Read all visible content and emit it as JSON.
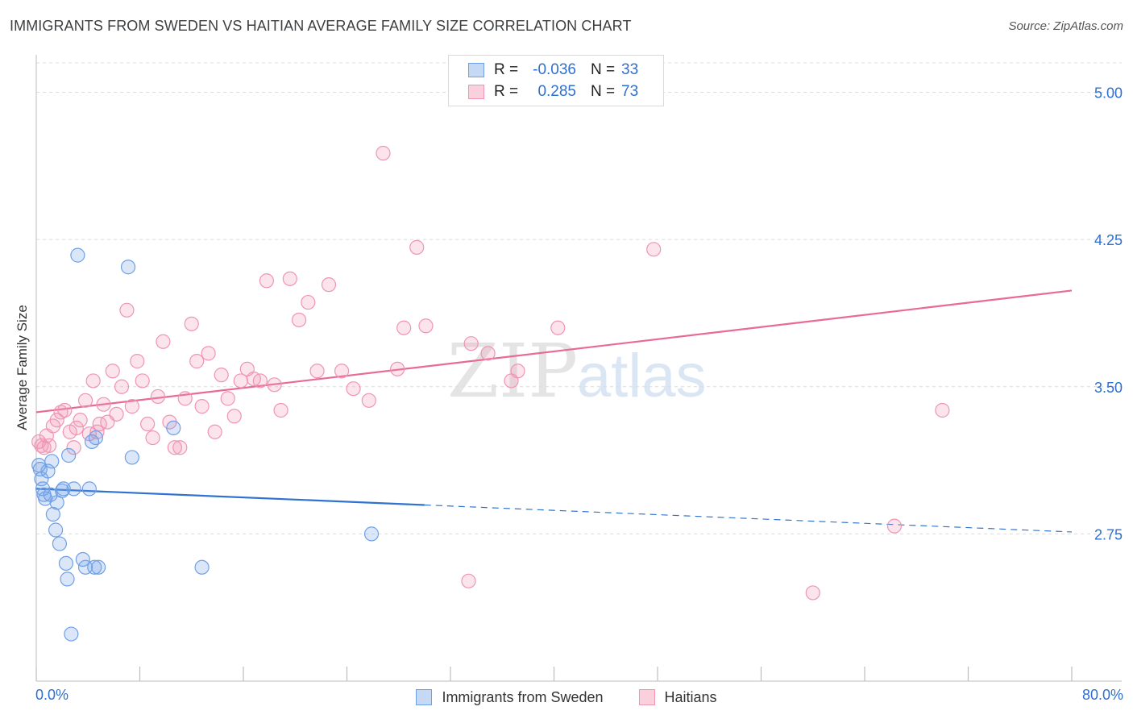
{
  "title": "IMMIGRANTS FROM SWEDEN VS HAITIAN AVERAGE FAMILY SIZE CORRELATION CHART",
  "source": "Source: ZipAtlas.com",
  "watermark": {
    "zip": "ZIP",
    "atlas": "atlas"
  },
  "legend": {
    "r_label": "R =",
    "n_label": "N =",
    "rows": [
      {
        "r": "-0.036",
        "n": "33"
      },
      {
        "r": "0.285",
        "n": "73"
      }
    ]
  },
  "x_tick_labels": {
    "min": "0.0%",
    "max": "80.0%"
  },
  "chart_data": {
    "type": "scatter",
    "title": "IMMIGRANTS FROM SWEDEN VS HAITIAN AVERAGE FAMILY SIZE CORRELATION CHART",
    "xlabel": "",
    "ylabel": "Average Family Size",
    "xlim": [
      0,
      80
    ],
    "ylim": [
      2.0,
      5.15
    ],
    "y_ticks": [
      2.75,
      3.5,
      4.25,
      5.0
    ],
    "y_tick_labels": [
      "2.75",
      "3.50",
      "4.25",
      "5.00"
    ],
    "grid": "horizontal dashed",
    "legend_position": "top-center",
    "colors": {
      "sweden": "#6fa0e6",
      "haitians": "#ef95b3",
      "sweden_line": "#2f73d0",
      "haitians_line": "#e86b94"
    },
    "series": [
      {
        "name": "Immigrants from Sweden",
        "x": [
          0.2,
          0.3,
          0.4,
          0.5,
          0.6,
          0.7,
          0.9,
          1.1,
          1.2,
          1.3,
          1.5,
          1.6,
          1.8,
          2.0,
          2.1,
          2.3,
          2.4,
          2.5,
          2.7,
          2.9,
          3.2,
          3.6,
          3.8,
          4.1,
          4.3,
          4.5,
          4.6,
          4.8,
          7.1,
          7.4,
          10.6,
          12.8,
          25.9
        ],
        "y": [
          3.1,
          3.08,
          3.03,
          2.98,
          2.95,
          2.93,
          3.07,
          2.95,
          3.12,
          2.85,
          2.77,
          2.91,
          2.7,
          2.97,
          2.98,
          2.6,
          2.52,
          3.15,
          2.24,
          2.98,
          4.17,
          2.62,
          2.58,
          2.98,
          3.22,
          2.58,
          3.24,
          2.58,
          4.11,
          3.14,
          3.29,
          2.58,
          2.75
        ]
      },
      {
        "name": "Haitians",
        "x": [
          0.2,
          0.4,
          0.6,
          0.8,
          1.0,
          1.3,
          1.6,
          1.9,
          2.2,
          2.6,
          2.9,
          3.1,
          3.4,
          3.8,
          4.1,
          4.4,
          4.7,
          4.9,
          5.2,
          5.5,
          5.9,
          6.2,
          6.6,
          7.0,
          7.4,
          7.8,
          8.2,
          8.6,
          9.0,
          9.4,
          9.8,
          10.3,
          10.7,
          11.1,
          11.5,
          12.0,
          12.4,
          12.8,
          13.3,
          13.8,
          14.3,
          14.8,
          15.3,
          15.8,
          16.3,
          16.8,
          17.3,
          17.8,
          18.4,
          18.9,
          19.6,
          20.3,
          21.0,
          21.7,
          22.6,
          23.6,
          24.5,
          25.7,
          26.8,
          27.9,
          28.4,
          29.4,
          30.1,
          33.4,
          33.6,
          34.9,
          36.7,
          37.2,
          40.3,
          47.7,
          60.0,
          66.3,
          70.0
        ],
        "y": [
          3.22,
          3.2,
          3.19,
          3.25,
          3.2,
          3.3,
          3.33,
          3.37,
          3.38,
          3.27,
          3.19,
          3.29,
          3.33,
          3.43,
          3.26,
          3.53,
          3.27,
          3.31,
          3.41,
          3.32,
          3.58,
          3.36,
          3.5,
          3.89,
          3.4,
          3.63,
          3.53,
          3.31,
          3.24,
          3.45,
          3.73,
          3.32,
          3.19,
          3.19,
          3.44,
          3.82,
          3.63,
          3.4,
          3.67,
          3.27,
          3.56,
          3.44,
          3.35,
          3.53,
          3.59,
          3.54,
          3.53,
          4.04,
          3.51,
          3.38,
          4.05,
          3.84,
          3.93,
          3.58,
          4.02,
          3.58,
          3.49,
          3.43,
          4.69,
          3.59,
          3.8,
          4.21,
          3.81,
          2.51,
          3.72,
          3.67,
          3.53,
          3.58,
          3.8,
          4.2,
          2.45,
          2.79,
          3.38
        ]
      }
    ],
    "trendlines": [
      {
        "series": "Immigrants from Sweden",
        "x": [
          0,
          80
        ],
        "y": [
          2.98,
          2.76
        ],
        "solid_until_x": 30
      },
      {
        "series": "Haitians",
        "x": [
          0,
          80
        ],
        "y": [
          3.37,
          3.99
        ]
      }
    ]
  },
  "bottom_legend": [
    "Immigrants from Sweden",
    "Haitians"
  ]
}
